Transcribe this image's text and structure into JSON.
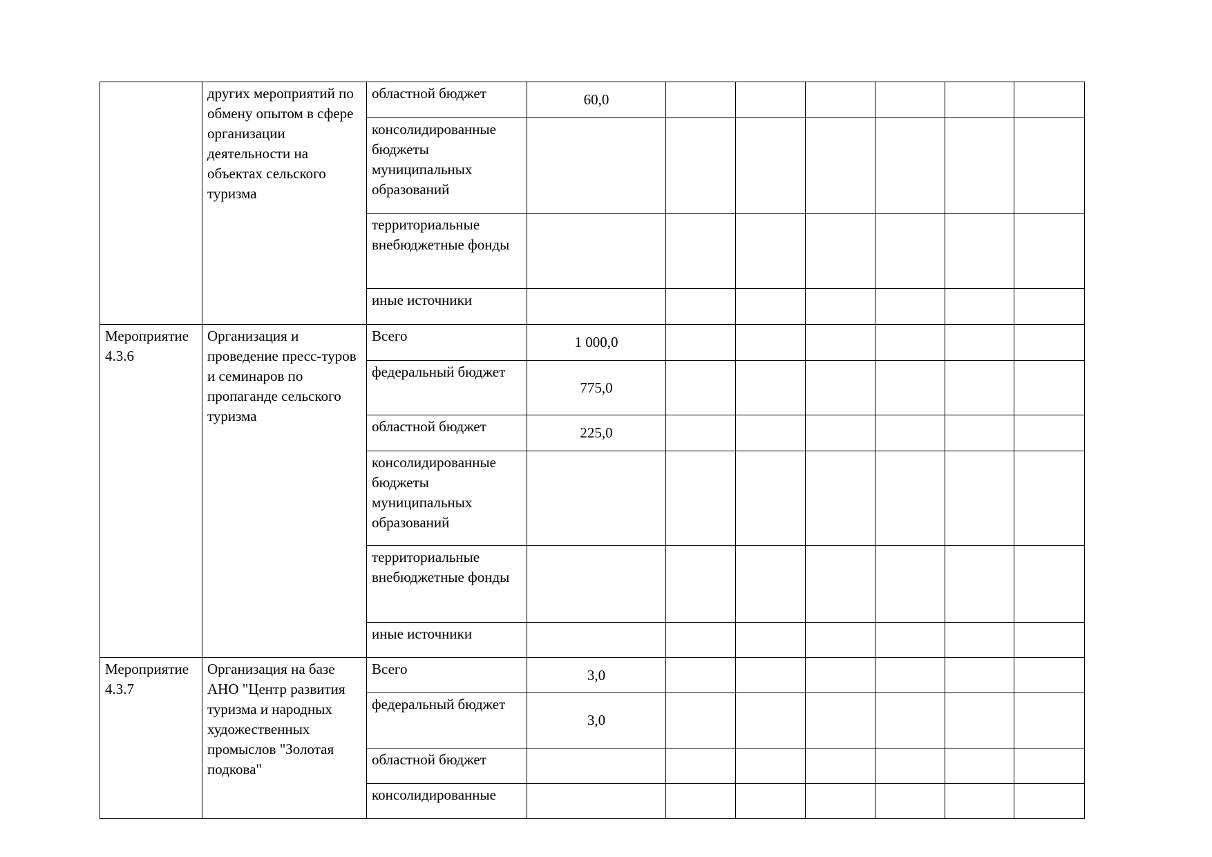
{
  "table": {
    "groups": [
      {
        "name": "других мероприятий по обмену опытом в сфере организации деятельности на объектах сельского туризма",
        "rows": [
          {
            "source": "областной бюджет",
            "value": "60,0"
          },
          {
            "source": "консолидированные бюджеты муниципальных образований"
          },
          {
            "source": "территориальные внебюджетные фонды"
          },
          {
            "source": "иные источники"
          }
        ]
      },
      {
        "code": "Мероприятие 4.3.6",
        "name": "Организация и проведение пресс-туров и семинаров по пропаганде сельского туризма",
        "rows": [
          {
            "source": "Всего",
            "value": "1 000,0"
          },
          {
            "source": "федеральный бюджет",
            "value": "775,0"
          },
          {
            "source": "областной бюджет",
            "value": "225,0"
          },
          {
            "source": "консолидированные бюджеты муниципальных образований"
          },
          {
            "source": "территориальные внебюджетные фонды"
          },
          {
            "source": "иные источники"
          }
        ]
      },
      {
        "code": "Мероприятие 4.3.7",
        "name": "Организация на базе АНО \"Центр развития туризма и народных художественных промыслов \"Золотая подкова\"",
        "rows": [
          {
            "source": "Всего",
            "value": "3,0"
          },
          {
            "source": "федеральный бюджет",
            "value": "3,0"
          },
          {
            "source": "областной бюджет"
          },
          {
            "source": "консолидированные"
          }
        ]
      }
    ]
  }
}
